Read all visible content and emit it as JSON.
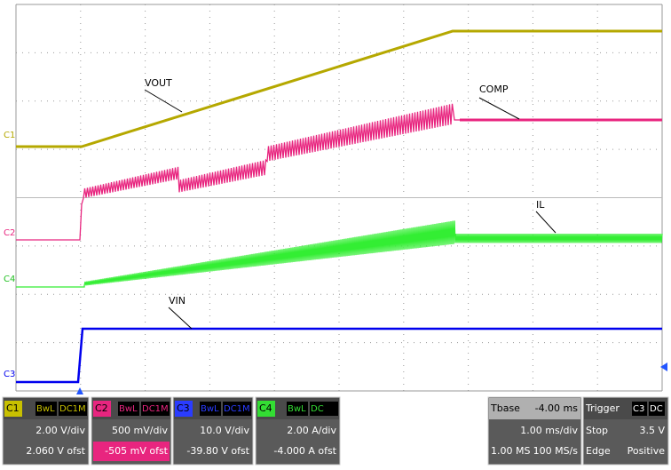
{
  "markers": [
    "C1",
    "C2",
    "C4",
    "C3"
  ],
  "traces": [
    "VOUT",
    "COMP",
    "IL",
    "VIN"
  ],
  "channels": [
    {
      "id": "C1",
      "bw": "BwL",
      "coupling": "DC1M",
      "scale": "2.00 V/div",
      "offset": "2.060 V ofst"
    },
    {
      "id": "C2",
      "bw": "BwL",
      "coupling": "DC1M",
      "scale": "500 mV/div",
      "offset": "-505 mV ofst"
    },
    {
      "id": "C3",
      "bw": "BwL",
      "coupling": "DC1M",
      "scale": "10.0 V/div",
      "offset": "-39.80 V ofst"
    },
    {
      "id": "C4",
      "bw": "BwL",
      "coupling": "DC",
      "scale": "2.00 A/div",
      "offset": "-4.000 A ofst"
    }
  ],
  "timebase": {
    "label": "Tbase",
    "delay": "-4.00 ms",
    "scale": "1.00 ms/div",
    "points": "1.00 MS",
    "rate": "100 MS/s"
  },
  "trigger": {
    "label": "Trigger",
    "source": "C3",
    "coupling": "DC",
    "mode": "Stop",
    "level": "3.5 V",
    "type": "Edge",
    "slope": "Positive"
  }
}
